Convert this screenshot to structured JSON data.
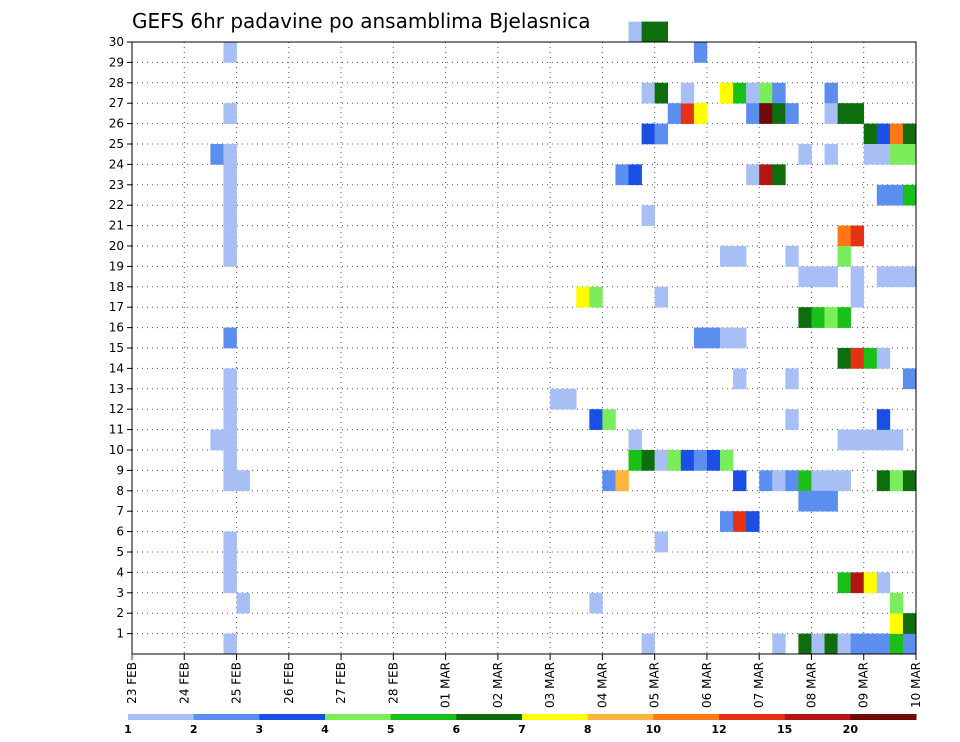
{
  "chart_data": {
    "type": "heatmap",
    "title": "GEFS 6hr padavine po ansamblima Bjelasnica",
    "xlabel": "",
    "ylabel": "",
    "x_tick_labels": [
      "23 FEB",
      "24 FEB",
      "25 FEB",
      "26 FEB",
      "27 FEB",
      "28 FEB",
      "01 MAR",
      "02 MAR",
      "03 MAR",
      "04 MAR",
      "05 MAR",
      "06 MAR",
      "07 MAR",
      "08 MAR",
      "09 MAR",
      "10 MAR"
    ],
    "y_tick_labels": [
      "1",
      "2",
      "3",
      "4",
      "5",
      "6",
      "7",
      "8",
      "9",
      "10",
      "11",
      "12",
      "13",
      "14",
      "15",
      "16",
      "17",
      "18",
      "19",
      "20",
      "21",
      "22",
      "23",
      "24",
      "25",
      "26",
      "27",
      "28",
      "29",
      "30"
    ],
    "xlim": [
      0,
      60
    ],
    "ylim": [
      0,
      30
    ],
    "legend": {
      "placement": "bottom",
      "labels": [
        "1",
        "2",
        "3",
        "4",
        "5",
        "6",
        "7",
        "8",
        "10",
        "12",
        "15",
        "20"
      ],
      "colors": [
        "#a8bff5",
        "#5c8ef0",
        "#1a4fe6",
        "#7aee5a",
        "#18c018",
        "#0e6e0e",
        "#ffff00",
        "#ffb43c",
        "#ff7814",
        "#e63214",
        "#b41414",
        "#6e0a0a"
      ]
    },
    "cells": [
      {
        "t": 7,
        "m": 0,
        "c": 0
      },
      {
        "t": 7,
        "m": 29,
        "c": 0
      },
      {
        "t": 6,
        "m": 24,
        "c": 1
      },
      {
        "t": 7,
        "m": 24,
        "c": 0
      },
      {
        "t": 7,
        "m": 23,
        "c": 0
      },
      {
        "t": 7,
        "m": 22,
        "c": 0
      },
      {
        "t": 7,
        "m": 21,
        "c": 0
      },
      {
        "t": 7,
        "m": 20,
        "c": 0
      },
      {
        "t": 7,
        "m": 19,
        "c": 0
      },
      {
        "t": 7,
        "m": 26,
        "c": 0
      },
      {
        "t": 7,
        "m": 15,
        "c": 1
      },
      {
        "t": 7,
        "m": 13,
        "c": 0
      },
      {
        "t": 7,
        "m": 12,
        "c": 0
      },
      {
        "t": 7,
        "m": 11,
        "c": 0
      },
      {
        "t": 6,
        "m": 10,
        "c": 0
      },
      {
        "t": 7,
        "m": 10,
        "c": 0
      },
      {
        "t": 7,
        "m": 9,
        "c": 0
      },
      {
        "t": 7,
        "m": 8,
        "c": 0
      },
      {
        "t": 8,
        "m": 8,
        "c": 0
      },
      {
        "t": 7,
        "m": 5,
        "c": 0
      },
      {
        "t": 7,
        "m": 4,
        "c": 0
      },
      {
        "t": 7,
        "m": 3,
        "c": 0
      },
      {
        "t": 8,
        "m": 2,
        "c": 0
      },
      {
        "t": 32,
        "m": 12,
        "c": 0
      },
      {
        "t": 33,
        "m": 12,
        "c": 0
      },
      {
        "t": 34,
        "m": 17,
        "c": 6
      },
      {
        "t": 35,
        "m": 17,
        "c": 3
      },
      {
        "t": 35,
        "m": 11,
        "c": 2
      },
      {
        "t": 36,
        "m": 11,
        "c": 3
      },
      {
        "t": 35,
        "m": 2,
        "c": 0
      },
      {
        "t": 36,
        "m": 8,
        "c": 1
      },
      {
        "t": 37,
        "m": 8,
        "c": 7
      },
      {
        "t": 37,
        "m": 23,
        "c": 1
      },
      {
        "t": 38,
        "m": 23,
        "c": 2
      },
      {
        "t": 38,
        "m": 10,
        "c": 0
      },
      {
        "t": 38,
        "m": 30,
        "c": 0
      },
      {
        "t": 39,
        "m": 30,
        "c": 5
      },
      {
        "t": 40,
        "m": 30,
        "c": 5
      },
      {
        "t": 39,
        "m": 27,
        "c": 0
      },
      {
        "t": 40,
        "m": 27,
        "c": 5
      },
      {
        "t": 39,
        "m": 25,
        "c": 2
      },
      {
        "t": 40,
        "m": 25,
        "c": 1
      },
      {
        "t": 39,
        "m": 21,
        "c": 0
      },
      {
        "t": 38,
        "m": 9,
        "c": 4
      },
      {
        "t": 39,
        "m": 9,
        "c": 5
      },
      {
        "t": 40,
        "m": 9,
        "c": 0
      },
      {
        "t": 41,
        "m": 9,
        "c": 3
      },
      {
        "t": 42,
        "m": 9,
        "c": 2
      },
      {
        "t": 43,
        "m": 9,
        "c": 1
      },
      {
        "t": 44,
        "m": 9,
        "c": 2
      },
      {
        "t": 45,
        "m": 9,
        "c": 3
      },
      {
        "t": 40,
        "m": 17,
        "c": 0
      },
      {
        "t": 40,
        "m": 5,
        "c": 0
      },
      {
        "t": 39,
        "m": 0,
        "c": 0
      },
      {
        "t": 41,
        "m": 26,
        "c": 1
      },
      {
        "t": 42,
        "m": 26,
        "c": 9
      },
      {
        "t": 43,
        "m": 26,
        "c": 6
      },
      {
        "t": 42,
        "m": 27,
        "c": 0
      },
      {
        "t": 43,
        "m": 29,
        "c": 1
      },
      {
        "t": 43,
        "m": 15,
        "c": 1
      },
      {
        "t": 44,
        "m": 15,
        "c": 1
      },
      {
        "t": 45,
        "m": 15,
        "c": 0
      },
      {
        "t": 46,
        "m": 15,
        "c": 0
      },
      {
        "t": 45,
        "m": 27,
        "c": 6
      },
      {
        "t": 46,
        "m": 27,
        "c": 4
      },
      {
        "t": 45,
        "m": 19,
        "c": 0
      },
      {
        "t": 46,
        "m": 19,
        "c": 0
      },
      {
        "t": 46,
        "m": 13,
        "c": 0
      },
      {
        "t": 45,
        "m": 6,
        "c": 1
      },
      {
        "t": 46,
        "m": 6,
        "c": 9
      },
      {
        "t": 47,
        "m": 6,
        "c": 2
      },
      {
        "t": 46,
        "m": 8,
        "c": 2
      },
      {
        "t": 47,
        "m": 27,
        "c": 0
      },
      {
        "t": 48,
        "m": 27,
        "c": 3
      },
      {
        "t": 49,
        "m": 27,
        "c": 1
      },
      {
        "t": 47,
        "m": 26,
        "c": 1
      },
      {
        "t": 48,
        "m": 26,
        "c": 11
      },
      {
        "t": 49,
        "m": 26,
        "c": 5
      },
      {
        "t": 50,
        "m": 26,
        "c": 1
      },
      {
        "t": 47,
        "m": 23,
        "c": 0
      },
      {
        "t": 48,
        "m": 23,
        "c": 10
      },
      {
        "t": 49,
        "m": 23,
        "c": 5
      },
      {
        "t": 48,
        "m": 8,
        "c": 1
      },
      {
        "t": 49,
        "m": 8,
        "c": 0
      },
      {
        "t": 50,
        "m": 8,
        "c": 1
      },
      {
        "t": 51,
        "m": 8,
        "c": 4
      },
      {
        "t": 52,
        "m": 8,
        "c": 0
      },
      {
        "t": 53,
        "m": 8,
        "c": 0
      },
      {
        "t": 54,
        "m": 8,
        "c": 0
      },
      {
        "t": 49,
        "m": 0,
        "c": 0
      },
      {
        "t": 50,
        "m": 19,
        "c": 0
      },
      {
        "t": 50,
        "m": 13,
        "c": 0
      },
      {
        "t": 50,
        "m": 11,
        "c": 0
      },
      {
        "t": 51,
        "m": 24,
        "c": 0
      },
      {
        "t": 51,
        "m": 18,
        "c": 0
      },
      {
        "t": 52,
        "m": 18,
        "c": 0
      },
      {
        "t": 53,
        "m": 18,
        "c": 0
      },
      {
        "t": 51,
        "m": 16,
        "c": 5
      },
      {
        "t": 52,
        "m": 16,
        "c": 4
      },
      {
        "t": 53,
        "m": 16,
        "c": 3
      },
      {
        "t": 54,
        "m": 16,
        "c": 4
      },
      {
        "t": 51,
        "m": 7,
        "c": 1
      },
      {
        "t": 52,
        "m": 7,
        "c": 1
      },
      {
        "t": 53,
        "m": 7,
        "c": 1
      },
      {
        "t": 51,
        "m": 0,
        "c": 5
      },
      {
        "t": 52,
        "m": 0,
        "c": 0
      },
      {
        "t": 53,
        "m": 0,
        "c": 5
      },
      {
        "t": 54,
        "m": 0,
        "c": 0
      },
      {
        "t": 55,
        "m": 0,
        "c": 1
      },
      {
        "t": 56,
        "m": 0,
        "c": 1
      },
      {
        "t": 57,
        "m": 0,
        "c": 1
      },
      {
        "t": 58,
        "m": 0,
        "c": 4
      },
      {
        "t": 59,
        "m": 0,
        "c": 1
      },
      {
        "t": 53,
        "m": 27,
        "c": 1
      },
      {
        "t": 53,
        "m": 26,
        "c": 0
      },
      {
        "t": 54,
        "m": 26,
        "c": 5
      },
      {
        "t": 55,
        "m": 26,
        "c": 5
      },
      {
        "t": 53,
        "m": 24,
        "c": 0
      },
      {
        "t": 54,
        "m": 20,
        "c": 8
      },
      {
        "t": 55,
        "m": 20,
        "c": 9
      },
      {
        "t": 54,
        "m": 19,
        "c": 3
      },
      {
        "t": 55,
        "m": 18,
        "c": 0
      },
      {
        "t": 55,
        "m": 17,
        "c": 0
      },
      {
        "t": 54,
        "m": 14,
        "c": 5
      },
      {
        "t": 55,
        "m": 14,
        "c": 9
      },
      {
        "t": 56,
        "m": 14,
        "c": 4
      },
      {
        "t": 57,
        "m": 14,
        "c": 0
      },
      {
        "t": 54,
        "m": 10,
        "c": 0
      },
      {
        "t": 55,
        "m": 10,
        "c": 0
      },
      {
        "t": 56,
        "m": 10,
        "c": 0
      },
      {
        "t": 57,
        "m": 10,
        "c": 0
      },
      {
        "t": 58,
        "m": 10,
        "c": 0
      },
      {
        "t": 54,
        "m": 3,
        "c": 4
      },
      {
        "t": 55,
        "m": 3,
        "c": 10
      },
      {
        "t": 56,
        "m": 3,
        "c": 6
      },
      {
        "t": 57,
        "m": 3,
        "c": 0
      },
      {
        "t": 56,
        "m": 25,
        "c": 5
      },
      {
        "t": 57,
        "m": 25,
        "c": 2
      },
      {
        "t": 58,
        "m": 25,
        "c": 8
      },
      {
        "t": 59,
        "m": 25,
        "c": 5
      },
      {
        "t": 56,
        "m": 24,
        "c": 0
      },
      {
        "t": 57,
        "m": 24,
        "c": 0
      },
      {
        "t": 58,
        "m": 24,
        "c": 3
      },
      {
        "t": 59,
        "m": 24,
        "c": 3
      },
      {
        "t": 57,
        "m": 22,
        "c": 1
      },
      {
        "t": 58,
        "m": 22,
        "c": 1
      },
      {
        "t": 59,
        "m": 22,
        "c": 4
      },
      {
        "t": 57,
        "m": 18,
        "c": 0
      },
      {
        "t": 58,
        "m": 18,
        "c": 0
      },
      {
        "t": 59,
        "m": 18,
        "c": 0
      },
      {
        "t": 57,
        "m": 11,
        "c": 2
      },
      {
        "t": 57,
        "m": 8,
        "c": 5
      },
      {
        "t": 58,
        "m": 8,
        "c": 3
      },
      {
        "t": 59,
        "m": 8,
        "c": 5
      },
      {
        "t": 58,
        "m": 1,
        "c": 6
      },
      {
        "t": 59,
        "m": 1,
        "c": 5
      },
      {
        "t": 58,
        "m": 2,
        "c": 3
      },
      {
        "t": 59,
        "m": 13,
        "c": 1
      }
    ]
  }
}
